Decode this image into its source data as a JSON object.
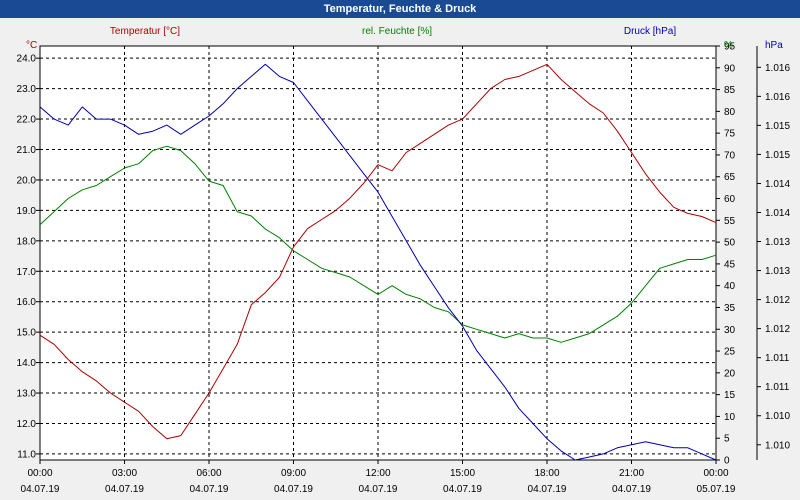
{
  "window": {
    "title": "Temperatur, Feuchte & Druck"
  },
  "chart_data": {
    "type": "line",
    "title": "Temperatur, Feuchte & Druck",
    "colors": {
      "temperature": "#b00000",
      "humidity": "#008000",
      "pressure": "#0000b0"
    },
    "x_ticks": [
      {
        "time": "00:00",
        "date": "04.07.19"
      },
      {
        "time": "03:00",
        "date": "04.07.19"
      },
      {
        "time": "06:00",
        "date": "04.07.19"
      },
      {
        "time": "09:00",
        "date": "04.07.19"
      },
      {
        "time": "12:00",
        "date": "04.07.19"
      },
      {
        "time": "15:00",
        "date": "04.07.19"
      },
      {
        "time": "18:00",
        "date": "04.07.19"
      },
      {
        "time": "21:00",
        "date": "04.07.19"
      },
      {
        "time": "00:00",
        "date": "05.07.19"
      }
    ],
    "xlim": [
      0,
      24
    ],
    "axes": {
      "temperature": {
        "label": "Temperatur [°C]",
        "unit": "°C",
        "ylim": [
          10.8,
          24.4
        ],
        "ticks": [
          "11.0",
          "12.0",
          "13.0",
          "14.0",
          "15.0",
          "16.0",
          "17.0",
          "18.0",
          "19.0",
          "20.0",
          "21.0",
          "22.0",
          "23.0",
          "24.0"
        ]
      },
      "humidity": {
        "label": "rel. Feuchte [%]",
        "unit": "%",
        "ylim": [
          0,
          95
        ],
        "ticks": [
          "0",
          "5",
          "10",
          "15",
          "20",
          "25",
          "30",
          "35",
          "40",
          "45",
          "50",
          "55",
          "60",
          "65",
          "70",
          "75",
          "80",
          "85",
          "90",
          "95"
        ]
      },
      "pressure": {
        "label": "Druck [hPa]",
        "unit": "hPa",
        "ylim": [
          1009.7,
          1016.5
        ],
        "ticks": [
          "1.010",
          "1.010",
          "1.011",
          "1.011",
          "1.012",
          "1.012",
          "1.013",
          "1.013",
          "1.014",
          "1.014",
          "1.015",
          "1.015",
          "1.016",
          "1.016"
        ]
      }
    },
    "series": [
      {
        "name": "Temperatur [°C]",
        "axis": "temperature",
        "x": [
          0,
          0.5,
          1,
          1.5,
          2,
          2.5,
          3,
          3.5,
          4,
          4.5,
          5,
          5.5,
          6,
          6.5,
          7,
          7.5,
          8,
          8.5,
          9,
          9.5,
          10,
          10.5,
          11,
          11.5,
          12,
          12.5,
          13,
          13.5,
          14,
          14.5,
          15,
          15.5,
          16,
          16.5,
          17,
          17.5,
          18,
          18.5,
          19,
          19.5,
          20,
          20.5,
          21,
          21.5,
          22,
          22.5,
          23,
          23.5,
          24
        ],
        "values": [
          14.9,
          14.6,
          14.1,
          13.7,
          13.4,
          13.0,
          12.7,
          12.4,
          11.9,
          11.5,
          11.6,
          12.3,
          13.0,
          13.8,
          14.6,
          15.9,
          16.3,
          16.8,
          17.8,
          18.4,
          18.7,
          19.0,
          19.4,
          19.9,
          20.5,
          20.3,
          20.9,
          21.2,
          21.5,
          21.8,
          22.0,
          22.5,
          23.0,
          23.3,
          23.4,
          23.6,
          23.8,
          23.3,
          22.9,
          22.5,
          22.2,
          21.6,
          20.9,
          20.2,
          19.6,
          19.1,
          18.9,
          18.8,
          18.6
        ]
      },
      {
        "name": "rel. Feuchte [%]",
        "axis": "humidity",
        "x": [
          0,
          0.5,
          1,
          1.5,
          2,
          2.5,
          3,
          3.5,
          4,
          4.5,
          5,
          5.5,
          6,
          6.5,
          7,
          7.5,
          8,
          8.5,
          9,
          9.5,
          10,
          10.5,
          11,
          11.5,
          12,
          12.5,
          13,
          13.5,
          14,
          14.5,
          15,
          15.5,
          16,
          16.5,
          17,
          17.5,
          18,
          18.5,
          19,
          19.5,
          20,
          20.5,
          21,
          21.5,
          22,
          22.5,
          23,
          23.5,
          24
        ],
        "values": [
          54,
          57,
          60,
          62,
          63,
          65,
          67,
          68,
          71,
          72,
          71,
          68,
          64,
          63,
          57,
          56,
          53,
          51,
          48,
          46,
          44,
          43,
          42,
          40,
          38,
          40,
          38,
          37,
          35,
          34,
          31,
          30,
          29,
          28,
          29,
          28,
          28,
          27,
          28,
          29,
          31,
          33,
          36,
          40,
          44,
          45,
          46,
          46,
          47
        ]
      },
      {
        "name": "Druck [hPa]",
        "axis": "pressure",
        "x": [
          0,
          0.5,
          1,
          1.5,
          2,
          2.5,
          3,
          3.5,
          4,
          4.5,
          5,
          5.5,
          6,
          6.5,
          7,
          7.5,
          8,
          8.5,
          9,
          9.5,
          10,
          10.5,
          11,
          11.5,
          12,
          12.5,
          13,
          13.5,
          14,
          14.5,
          15,
          15.5,
          16,
          16.5,
          17,
          17.5,
          18,
          18.5,
          19,
          19.5,
          20,
          20.5,
          21,
          21.5,
          22,
          22.5,
          23,
          23.5,
          24
        ],
        "values": [
          1015.5,
          1015.3,
          1015.2,
          1015.5,
          1015.3,
          1015.3,
          1015.2,
          1015.05,
          1015.1,
          1015.2,
          1015.05,
          1015.2,
          1015.35,
          1015.55,
          1015.8,
          1016.0,
          1016.2,
          1016.0,
          1015.9,
          1015.6,
          1015.3,
          1015.0,
          1014.7,
          1014.4,
          1014.1,
          1013.7,
          1013.3,
          1012.9,
          1012.55,
          1012.2,
          1011.9,
          1011.5,
          1011.2,
          1010.9,
          1010.55,
          1010.3,
          1010.05,
          1009.85,
          1009.7,
          1009.75,
          1009.8,
          1009.9,
          1009.95,
          1010.0,
          1009.95,
          1009.9,
          1009.9,
          1009.8,
          1009.7
        ]
      }
    ]
  }
}
